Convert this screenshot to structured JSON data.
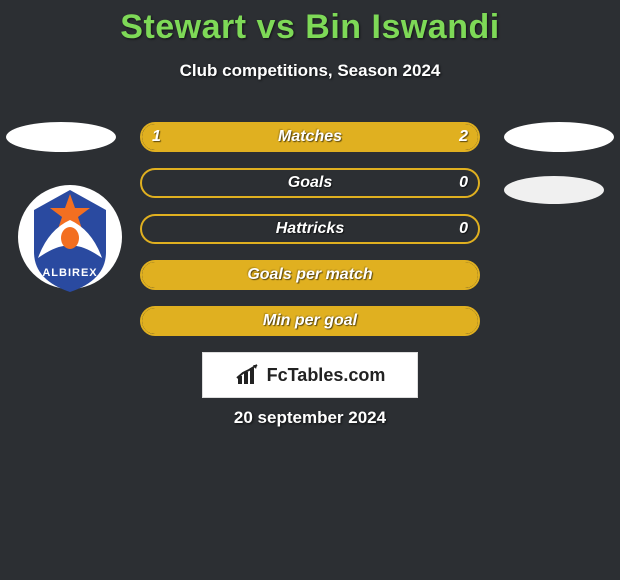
{
  "title": "Stewart vs Bin Iswandi",
  "subtitle": "Club competitions, Season 2024",
  "logo_text": "FcTables.com",
  "date_text": "20 september 2024",
  "colors": {
    "background": "#2c2f33",
    "title": "#7ed957",
    "text": "#ffffff",
    "bar_fill": "#e0b020",
    "bar_border": "#e0b020",
    "logo_bg": "#ffffff",
    "logo_text": "#222222"
  },
  "badge": {
    "circle_bg": "#ffffff",
    "star": "#f36f21",
    "body": "#2a4aa0",
    "wing": "#ffffff",
    "name": "ALBIREX"
  },
  "bars": [
    {
      "label": "Matches",
      "left": "1",
      "right": "2",
      "left_pct": 33,
      "right_pct": 67
    },
    {
      "label": "Goals",
      "left": "",
      "right": "0",
      "left_pct": 0,
      "right_pct": 0
    },
    {
      "label": "Hattricks",
      "left": "",
      "right": "0",
      "left_pct": 0,
      "right_pct": 0
    },
    {
      "label": "Goals per match",
      "left": "",
      "right": "",
      "left_pct": 100,
      "right_pct": 0,
      "full": true
    },
    {
      "label": "Min per goal",
      "left": "",
      "right": "",
      "left_pct": 100,
      "right_pct": 0,
      "full": true
    }
  ]
}
